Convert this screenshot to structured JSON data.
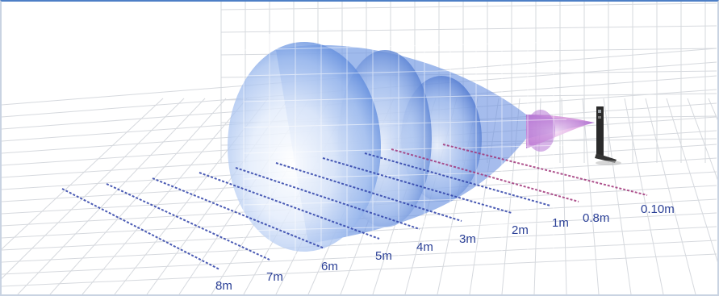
{
  "diagram": {
    "distance_labels": [
      {
        "label": "8m",
        "kind": "blue"
      },
      {
        "label": "7m",
        "kind": "blue"
      },
      {
        "label": "6m",
        "kind": "blue"
      },
      {
        "label": "5m",
        "kind": "blue"
      },
      {
        "label": "4m",
        "kind": "blue"
      },
      {
        "label": "3m",
        "kind": "blue"
      },
      {
        "label": "2m",
        "kind": "blue"
      },
      {
        "label": "1m",
        "kind": "blue"
      },
      {
        "label": "0.8m",
        "kind": "pink"
      },
      {
        "label": "0.10m",
        "kind": "pink"
      }
    ],
    "colors": {
      "frame_border": "#c9d3e2",
      "frame_top": "#4d7fc6",
      "grid": "#d6d9de",
      "beam_blue": "#5b87d8",
      "beam_pink": "#c86ad0",
      "dist_line_blue": "#2c3fa8",
      "dist_line_pink": "#a0357a",
      "label_text": "#2a3f96",
      "sensor": "#2a2a2a"
    }
  }
}
